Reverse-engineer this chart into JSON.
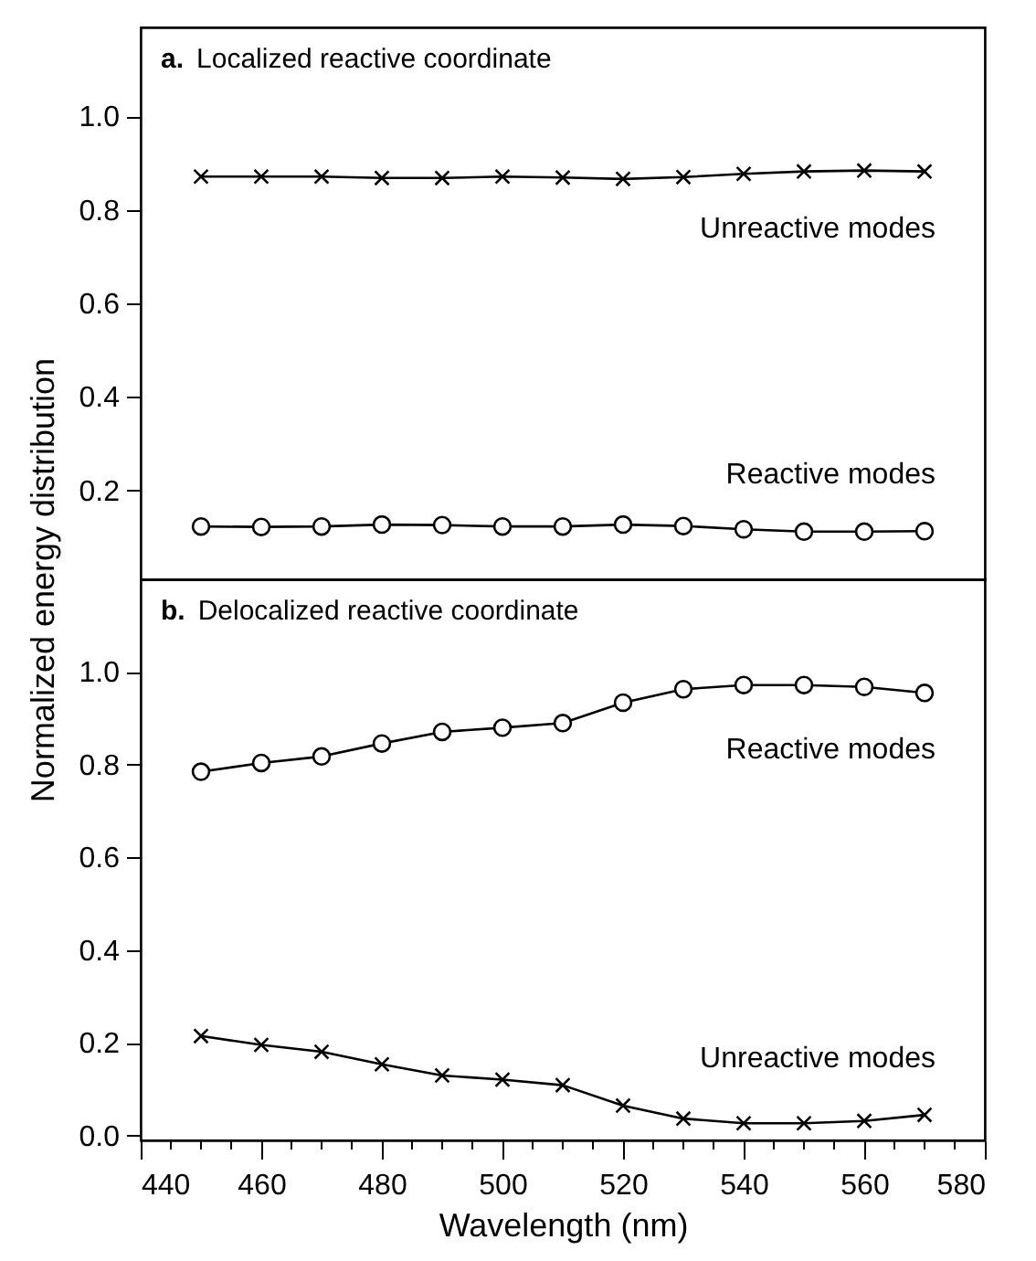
{
  "chart_data": [
    {
      "type": "line",
      "title": "a. Localized reactive coordinate",
      "ylabel": "Normalized energy distribution",
      "x": [
        450,
        460,
        470,
        480,
        490,
        500,
        510,
        520,
        530,
        540,
        550,
        560,
        570
      ],
      "xlim": [
        440,
        580
      ],
      "ylim": [
        0.01,
        1.19
      ],
      "yticks": [
        {
          "value": 0.2,
          "label": "0.2"
        },
        {
          "value": 0.4,
          "label": "0.4"
        },
        {
          "value": 0.6,
          "label": "0.6"
        },
        {
          "value": 0.8,
          "label": "0.8"
        },
        {
          "value": 1,
          "label": "1.0"
        }
      ],
      "tick_labels": "y",
      "grid": false,
      "line_style": "solid",
      "series": [
        {
          "name": "Unreactive modes",
          "color": "#000000",
          "marker": "cross",
          "values": [
            0.871,
            0.871,
            0.871,
            0.868,
            0.868,
            0.871,
            0.869,
            0.866,
            0.87,
            0.877,
            0.882,
            0.884,
            0.882
          ]
        },
        {
          "name": "Reactive modes",
          "color": "#000000",
          "marker": "circle",
          "values": [
            0.123,
            0.122,
            0.123,
            0.127,
            0.126,
            0.123,
            0.123,
            0.127,
            0.124,
            0.117,
            0.112,
            0.112,
            0.113
          ]
        }
      ]
    },
    {
      "type": "line",
      "title": "b. Delocalized reactive coordinate",
      "xlabel": "Wavelength (nm)",
      "x": [
        450,
        460,
        470,
        480,
        490,
        500,
        510,
        520,
        530,
        540,
        550,
        560,
        570
      ],
      "xlim": [
        440,
        580
      ],
      "ylim": [
        -0.01,
        1.2
      ],
      "xticks": [
        440,
        {
          "value": 445,
          "label": null
        },
        {
          "value": 450,
          "label": null
        },
        {
          "value": 455,
          "label": null
        },
        460,
        {
          "value": 465,
          "label": null
        },
        {
          "value": 470,
          "label": null
        },
        {
          "value": 475,
          "label": null
        },
        480,
        {
          "value": 485,
          "label": null
        },
        {
          "value": 490,
          "label": null
        },
        {
          "value": 495,
          "label": null
        },
        500,
        {
          "value": 505,
          "label": null
        },
        {
          "value": 510,
          "label": null
        },
        {
          "value": 515,
          "label": null
        },
        520,
        {
          "value": 525,
          "label": null
        },
        {
          "value": 530,
          "label": null
        },
        {
          "value": 535,
          "label": null
        },
        540,
        {
          "value": 545,
          "label": null
        },
        {
          "value": 550,
          "label": null
        },
        {
          "value": 555,
          "label": null
        },
        560,
        {
          "value": 565,
          "label": null
        },
        {
          "value": 570,
          "label": null
        },
        {
          "value": 575,
          "label": null
        },
        580
      ],
      "yticks": [
        {
          "value": 0,
          "label": "0.0"
        },
        {
          "value": 0.2,
          "label": "0.2"
        },
        {
          "value": 0.4,
          "label": "0.4"
        },
        {
          "value": 0.6,
          "label": "0.6"
        },
        {
          "value": 0.8,
          "label": "0.8"
        },
        {
          "value": 1,
          "label": "1.0"
        }
      ],
      "grid": false,
      "line_style": "solid",
      "series": [
        {
          "name": "Reactive modes",
          "color": "#000000",
          "marker": "circle",
          "values": [
            0.785,
            0.804,
            0.818,
            0.846,
            0.871,
            0.88,
            0.89,
            0.934,
            0.963,
            0.972,
            0.972,
            0.968,
            0.955
          ]
        },
        {
          "name": "Unreactive modes",
          "color": "#000000",
          "marker": "cross",
          "values": [
            0.215,
            0.196,
            0.181,
            0.154,
            0.13,
            0.121,
            0.109,
            0.065,
            0.037,
            0.027,
            0.027,
            0.032,
            0.045
          ]
        }
      ]
    }
  ]
}
